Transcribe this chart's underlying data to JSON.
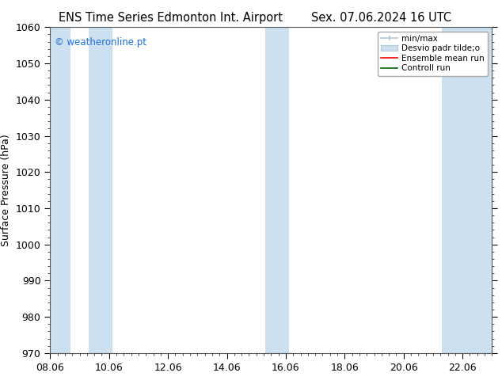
{
  "title_left": "ENS Time Series Edmonton Int. Airport",
  "title_right": "Sex. 07.06.2024 16 UTC",
  "ylabel": "Surface Pressure (hPa)",
  "ylim": [
    970,
    1060
  ],
  "yticks": [
    970,
    980,
    990,
    1000,
    1010,
    1020,
    1030,
    1040,
    1050,
    1060
  ],
  "xlim": [
    0,
    15
  ],
  "xtick_positions": [
    0,
    2,
    4,
    6,
    8,
    10,
    12,
    14
  ],
  "xtick_labels": [
    "08.06",
    "10.06",
    "12.06",
    "14.06",
    "16.06",
    "18.06",
    "20.06",
    "22.06"
  ],
  "shaded_bands": [
    {
      "xmin": -0.1,
      "xmax": 0.7,
      "color": "#cce0f0"
    },
    {
      "xmin": 1.3,
      "xmax": 2.1,
      "color": "#cce0f0"
    },
    {
      "xmin": 7.3,
      "xmax": 8.1,
      "color": "#cce0f0"
    },
    {
      "xmin": 13.3,
      "xmax": 15.1,
      "color": "#cce0f0"
    }
  ],
  "watermark": "© weatheronline.pt",
  "watermark_color": "#1a6ee6",
  "background_color": "#ffffff",
  "plot_bg_color": "#ffffff",
  "tick_label_fontsize": 9,
  "title_fontsize": 10.5,
  "ylabel_fontsize": 9,
  "legend_fontsize": 7.5
}
